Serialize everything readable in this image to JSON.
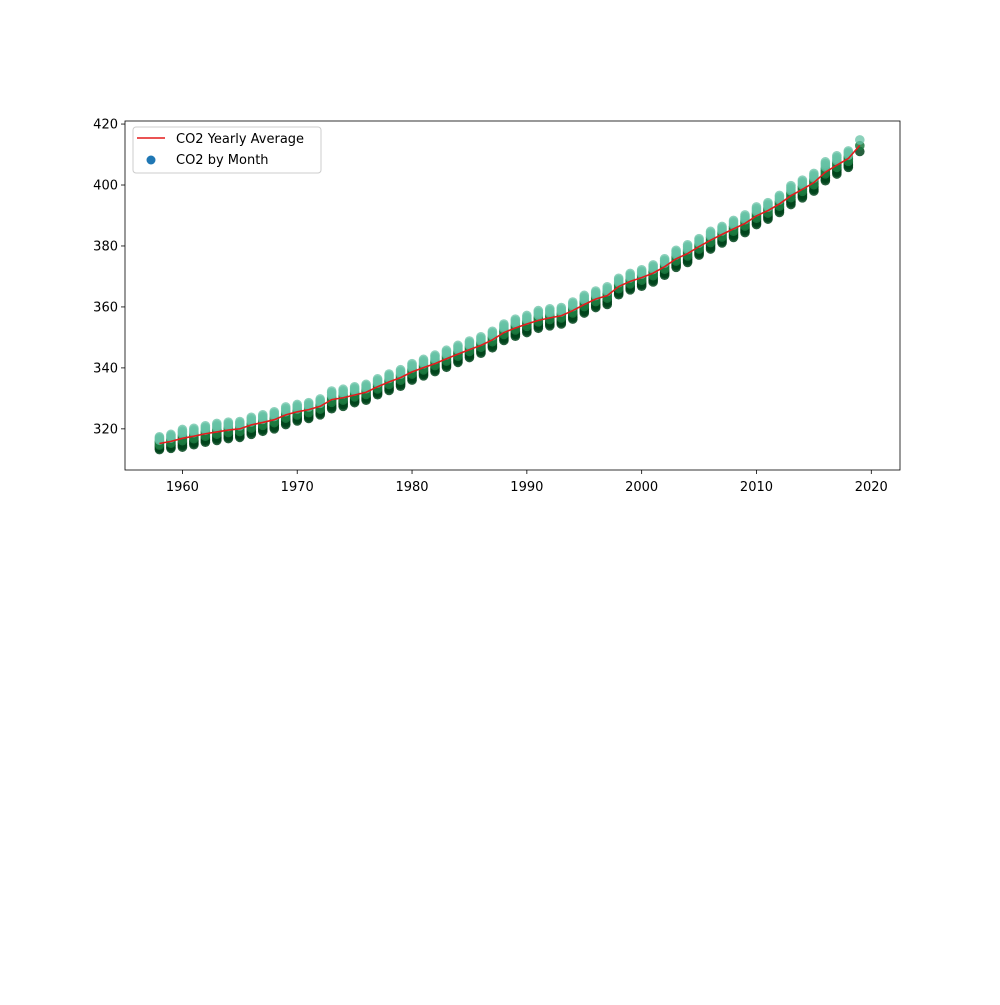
{
  "colors": {
    "average_line": "#e41a1c",
    "legend_marker": "#1f77b4",
    "month_low": "#00441b",
    "month_mid": "#1b7a3f",
    "month_high": "#66c2a4"
  },
  "chart_data": {
    "type": "scatter",
    "title": "",
    "xlabel": "",
    "ylabel": "",
    "xlim": [
      1955,
      2022.5
    ],
    "ylim": [
      306.5,
      421
    ],
    "xticks": [
      1960,
      1970,
      1980,
      1990,
      2000,
      2010,
      2020
    ],
    "yticks": [
      320,
      340,
      360,
      380,
      400,
      420
    ],
    "grid": false,
    "legend_position": "top-left",
    "legend": [
      {
        "label": "CO2 Yearly Average",
        "kind": "line",
        "color": "#e41a1c"
      },
      {
        "label": "CO2 by Month",
        "kind": "marker",
        "color": "#1f77b4"
      }
    ],
    "series": [
      {
        "name": "CO2 Yearly Average",
        "kind": "line",
        "x": [
          1958,
          1959,
          1960,
          1961,
          1962,
          1963,
          1964,
          1965,
          1966,
          1967,
          1968,
          1969,
          1970,
          1971,
          1972,
          1973,
          1974,
          1975,
          1976,
          1977,
          1978,
          1979,
          1980,
          1981,
          1982,
          1983,
          1984,
          1985,
          1986,
          1987,
          1988,
          1989,
          1990,
          1991,
          1992,
          1993,
          1994,
          1995,
          1996,
          1997,
          1998,
          1999,
          2000,
          2001,
          2002,
          2003,
          2004,
          2005,
          2006,
          2007,
          2008,
          2009,
          2010,
          2011,
          2012,
          2013,
          2014,
          2015,
          2016,
          2017,
          2018,
          2019
        ],
        "y": [
          315.2,
          315.9,
          316.9,
          317.6,
          318.4,
          319.0,
          319.6,
          320.0,
          321.3,
          322.1,
          323.0,
          324.6,
          325.6,
          326.3,
          327.4,
          329.6,
          330.2,
          331.1,
          332.0,
          333.8,
          335.4,
          336.8,
          338.7,
          340.1,
          341.4,
          343.0,
          344.5,
          346.0,
          347.4,
          349.2,
          351.6,
          353.1,
          354.4,
          355.6,
          356.4,
          357.1,
          358.8,
          360.8,
          362.6,
          363.7,
          366.7,
          368.4,
          369.6,
          371.1,
          373.2,
          375.8,
          377.5,
          379.8,
          381.9,
          383.8,
          385.6,
          387.4,
          389.9,
          391.6,
          393.8,
          396.5,
          398.6,
          400.8,
          404.2,
          406.5,
          408.7,
          413.0
        ]
      },
      {
        "name": "CO2 by Month",
        "kind": "scatter",
        "description_note": "",
        "years": [
          1958,
          1959,
          1960,
          1961,
          1962,
          1963,
          1964,
          1965,
          1966,
          1967,
          1968,
          1969,
          1970,
          1971,
          1972,
          1973,
          1974,
          1975,
          1976,
          1977,
          1978,
          1979,
          1980,
          1981,
          1982,
          1983,
          1984,
          1985,
          1986,
          1987,
          1988,
          1989,
          1990,
          1991,
          1992,
          1993,
          1994,
          1995,
          1996,
          1997,
          1998,
          1999,
          2000,
          2001,
          2002,
          2003,
          2004,
          2005,
          2006,
          2007,
          2008,
          2009,
          2010,
          2011,
          2012,
          2013,
          2014,
          2015,
          2016,
          2017,
          2018,
          2019
        ],
        "min": [
          313.2,
          313.6,
          314.0,
          314.8,
          315.6,
          316.2,
          316.8,
          317.2,
          318.2,
          319.2,
          320.0,
          321.4,
          322.6,
          323.4,
          324.6,
          326.6,
          327.4,
          328.6,
          329.4,
          331.2,
          332.6,
          334.0,
          336.0,
          337.4,
          338.8,
          340.2,
          341.8,
          343.4,
          344.8,
          346.6,
          349.0,
          350.4,
          351.6,
          353.0,
          353.8,
          354.4,
          356.0,
          358.0,
          359.8,
          360.8,
          364.0,
          365.6,
          366.8,
          368.2,
          370.4,
          373.0,
          374.6,
          377.0,
          379.0,
          381.0,
          382.8,
          384.4,
          387.0,
          388.8,
          391.0,
          393.6,
          395.8,
          398.0,
          401.4,
          403.6,
          405.8,
          411.0
        ],
        "max": [
          317.4,
          318.2,
          319.8,
          320.2,
          321.0,
          321.8,
          322.2,
          322.4,
          323.8,
          324.6,
          325.6,
          327.2,
          328.0,
          328.6,
          329.8,
          332.4,
          333.0,
          333.8,
          334.6,
          336.4,
          338.0,
          339.4,
          341.4,
          342.8,
          344.2,
          345.8,
          347.4,
          348.8,
          350.2,
          352.0,
          354.4,
          356.0,
          357.2,
          358.8,
          359.4,
          359.8,
          361.6,
          363.8,
          365.2,
          366.6,
          369.4,
          371.0,
          372.2,
          373.8,
          375.8,
          378.6,
          380.4,
          382.4,
          384.8,
          386.4,
          388.4,
          390.2,
          392.8,
          394.2,
          396.6,
          399.8,
          401.6,
          403.8,
          407.6,
          409.6,
          411.2,
          414.8
        ]
      }
    ]
  }
}
